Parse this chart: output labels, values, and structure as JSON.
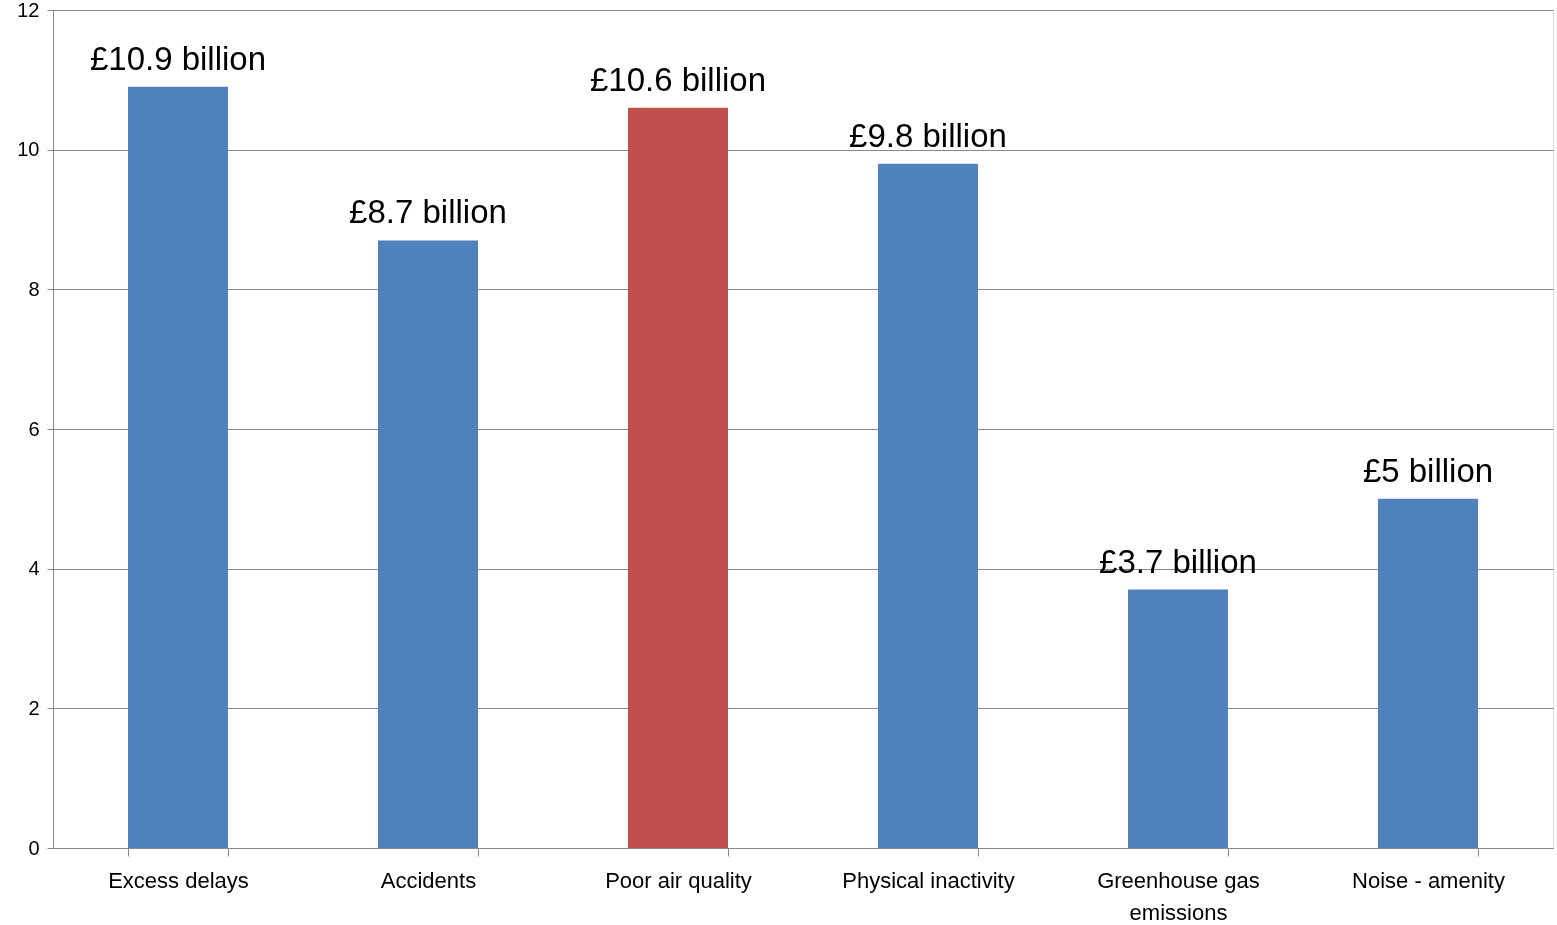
{
  "chart_data": {
    "type": "bar",
    "categories": [
      "Excess delays",
      "Accidents",
      "Poor air quality",
      "Physical inactivity",
      "Greenhouse gas emissions",
      "Noise - amenity"
    ],
    "values": [
      10.9,
      8.7,
      10.6,
      9.8,
      3.7,
      5
    ],
    "value_labels": [
      "£10.9 billion",
      "£8.7 billion",
      "£10.6 billion",
      "£9.8 billion",
      "£3.7 billion",
      "£5 billion"
    ],
    "colors": [
      "#4f81bd",
      "#4f81bd",
      "#c0504d",
      "#4f81bd",
      "#4f81bd",
      "#4f81bd"
    ],
    "ylim": [
      0,
      12
    ],
    "yticks": [
      0,
      2,
      4,
      6,
      8,
      10,
      12
    ],
    "grid": "y"
  }
}
